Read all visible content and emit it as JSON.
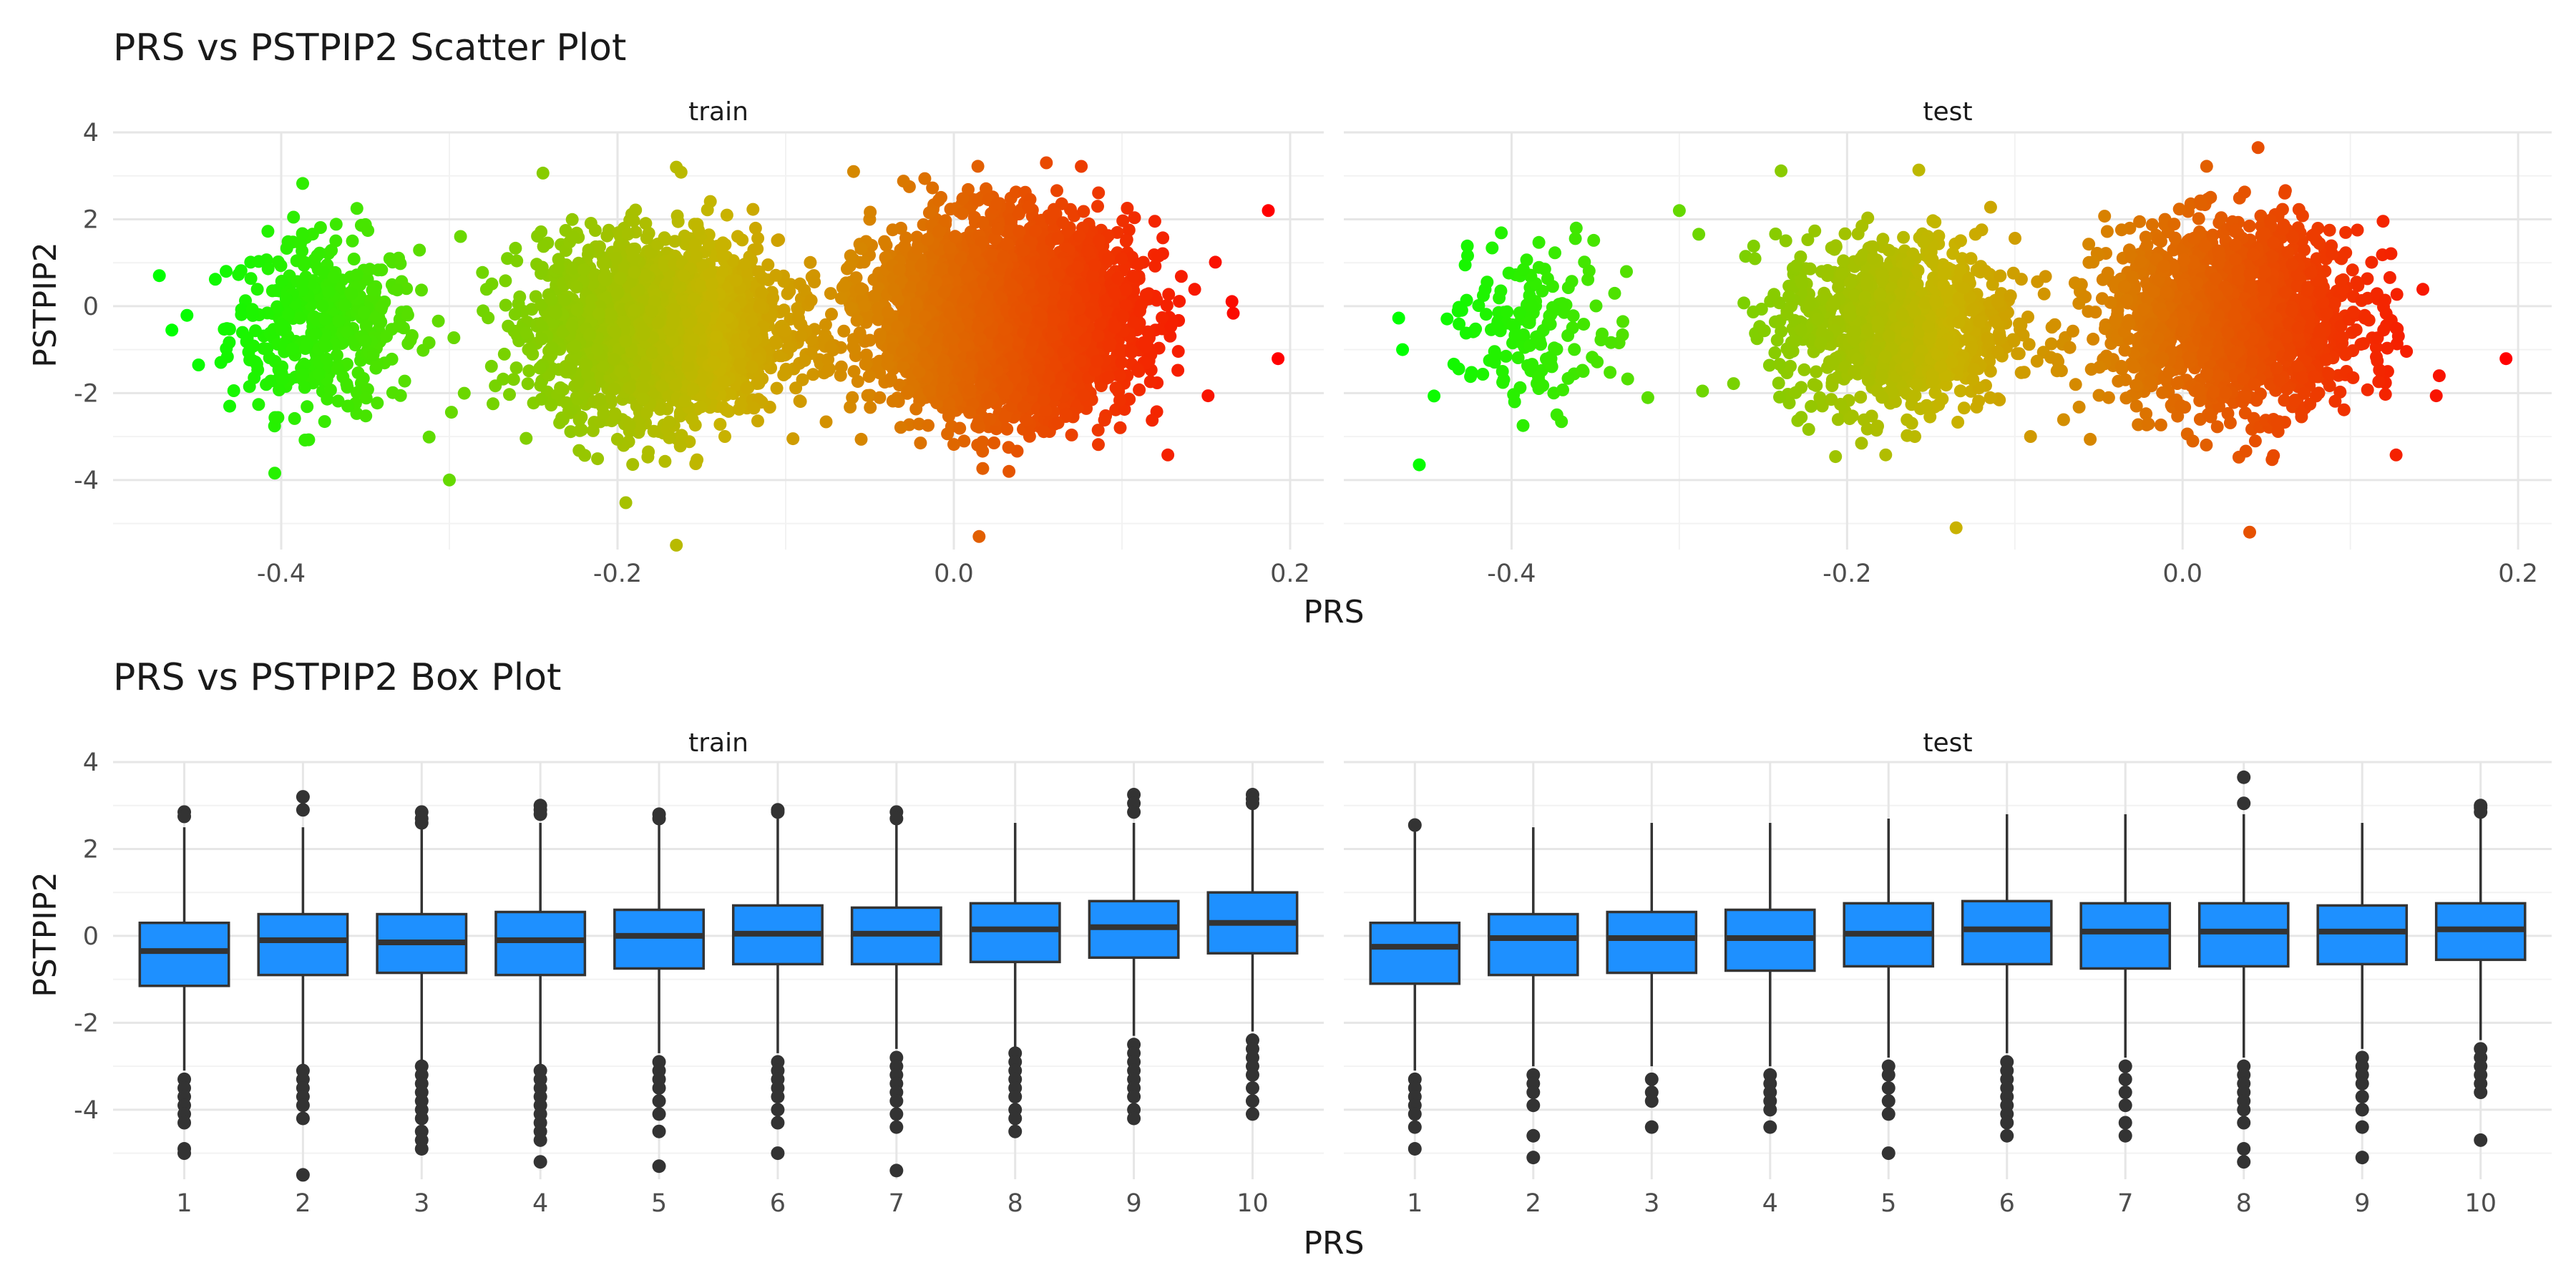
{
  "figure": {
    "scatter_title": "PRS vs PSTPIP2 Scatter Plot",
    "box_title": "PRS vs PSTPIP2 Box Plot",
    "xlabel": "PRS",
    "ylabel": "PSTPIP2",
    "facets": [
      "train",
      "test"
    ]
  },
  "colors": {
    "gradient_low": "#00ff00",
    "gradient_mid": "#c8b400",
    "gradient_high": "#ff0000",
    "box_fill": "#1e90ff",
    "box_line": "#333333",
    "grid_major": "#e6e6e6",
    "grid_minor": "#f2f2f2"
  },
  "chart_data": [
    {
      "type": "scatter",
      "title": "PRS vs PSTPIP2 Scatter Plot",
      "xlabel": "PRS",
      "ylabel": "PSTPIP2",
      "xlim": [
        -0.5,
        0.22
      ],
      "ylim": [
        -5.6,
        4.0
      ],
      "x_ticks": [
        -0.4,
        -0.2,
        0.0,
        0.2
      ],
      "x_tick_labels": [
        "-0.4",
        "-0.2",
        "0.0",
        "0.2"
      ],
      "y_ticks": [
        -4,
        -2,
        0,
        2,
        4
      ],
      "y_tick_labels": [
        "-4",
        "-2",
        "0",
        "2",
        "4"
      ],
      "color_by": "PRS",
      "grid": true,
      "facets": [
        {
          "name": "train",
          "clusters": [
            {
              "x_mean": -0.375,
              "x_sd": 0.028,
              "y_mean": -0.45,
              "y_sd": 1.0,
              "n": 420
            },
            {
              "x_mean": -0.175,
              "x_sd": 0.035,
              "y_mean": -0.5,
              "y_sd": 1.0,
              "n": 2400
            },
            {
              "x_mean": 0.03,
              "x_sd": 0.038,
              "y_mean": -0.25,
              "y_sd": 1.05,
              "n": 3600
            }
          ],
          "extreme_points": [
            {
              "x": -0.465,
              "y": -0.55
            },
            {
              "x": 0.187,
              "y": 2.2
            },
            {
              "x": -0.165,
              "y": -5.5
            },
            {
              "x": 0.015,
              "y": -5.3
            },
            {
              "x": -0.3,
              "y": -4.0
            },
            {
              "x": -0.165,
              "y": 3.2
            },
            {
              "x": 0.055,
              "y": 3.3
            },
            {
              "x": -0.355,
              "y": 2.25
            }
          ]
        },
        {
          "name": "test",
          "clusters": [
            {
              "x_mean": -0.385,
              "x_sd": 0.028,
              "y_mean": -0.45,
              "y_sd": 0.95,
              "n": 160
            },
            {
              "x_mean": -0.17,
              "x_sd": 0.035,
              "y_mean": -0.45,
              "y_sd": 1.0,
              "n": 1000
            },
            {
              "x_mean": 0.03,
              "x_sd": 0.038,
              "y_mean": -0.25,
              "y_sd": 1.05,
              "n": 1600
            }
          ],
          "extreme_points": [
            {
              "x": -0.465,
              "y": -1.0
            },
            {
              "x": -0.455,
              "y": -3.65
            },
            {
              "x": 0.045,
              "y": 3.65
            },
            {
              "x": 0.04,
              "y": -5.2
            },
            {
              "x": -0.135,
              "y": -5.1
            },
            {
              "x": 0.153,
              "y": -1.6
            },
            {
              "x": -0.3,
              "y": 2.2
            }
          ]
        }
      ]
    },
    {
      "type": "box",
      "title": "PRS vs PSTPIP2 Box Plot",
      "xlabel": "PRS",
      "ylabel": "PSTPIP2",
      "categories": [
        "1",
        "2",
        "3",
        "4",
        "5",
        "6",
        "7",
        "8",
        "9",
        "10"
      ],
      "ylim": [
        -5.6,
        4.0
      ],
      "y_ticks": [
        -4,
        -2,
        0,
        2,
        4
      ],
      "y_tick_labels": [
        "-4",
        "-2",
        "0",
        "2",
        "4"
      ],
      "grid": true,
      "facets": [
        {
          "name": "train",
          "boxes": [
            {
              "q1": -1.15,
              "median": -0.35,
              "q3": 0.3,
              "whisker_low": -3.1,
              "whisker_high": 2.5,
              "outliers": [
                2.85,
                2.75,
                -3.3,
                -3.5,
                -3.7,
                -3.9,
                -4.1,
                -4.3,
                -4.9,
                -5.0
              ]
            },
            {
              "q1": -0.9,
              "median": -0.1,
              "q3": 0.5,
              "whisker_low": -3.0,
              "whisker_high": 2.5,
              "outliers": [
                3.2,
                2.9,
                -3.1,
                -3.3,
                -3.5,
                -3.7,
                -3.9,
                -4.2,
                -5.5
              ]
            },
            {
              "q1": -0.85,
              "median": -0.15,
              "q3": 0.5,
              "whisker_low": -2.9,
              "whisker_high": 2.5,
              "outliers": [
                2.85,
                2.7,
                2.6,
                -3.0,
                -3.2,
                -3.4,
                -3.6,
                -3.8,
                -4.0,
                -4.2,
                -4.5,
                -4.7,
                -4.9
              ]
            },
            {
              "q1": -0.9,
              "median": -0.1,
              "q3": 0.55,
              "whisker_low": -3.0,
              "whisker_high": 2.6,
              "outliers": [
                3.0,
                2.9,
                2.8,
                -3.1,
                -3.3,
                -3.5,
                -3.7,
                -3.9,
                -4.1,
                -4.3,
                -4.5,
                -4.7,
                -5.2
              ]
            },
            {
              "q1": -0.75,
              "median": 0.0,
              "q3": 0.6,
              "whisker_low": -2.7,
              "whisker_high": 2.6,
              "outliers": [
                2.8,
                2.7,
                -2.9,
                -3.1,
                -3.3,
                -3.5,
                -3.8,
                -4.1,
                -4.5,
                -5.3
              ]
            },
            {
              "q1": -0.65,
              "median": 0.05,
              "q3": 0.7,
              "whisker_low": -2.7,
              "whisker_high": 2.8,
              "outliers": [
                2.9,
                2.85,
                -2.9,
                -3.1,
                -3.3,
                -3.5,
                -3.7,
                -4.0,
                -4.3,
                -5.0
              ]
            },
            {
              "q1": -0.65,
              "median": 0.05,
              "q3": 0.65,
              "whisker_low": -2.6,
              "whisker_high": 2.6,
              "outliers": [
                2.85,
                2.7,
                -2.8,
                -3.0,
                -3.2,
                -3.4,
                -3.6,
                -3.8,
                -4.1,
                -4.4,
                -5.4
              ]
            },
            {
              "q1": -0.6,
              "median": 0.15,
              "q3": 0.75,
              "whisker_low": -2.6,
              "whisker_high": 2.6,
              "outliers": [
                -2.7,
                -2.9,
                -3.1,
                -3.3,
                -3.5,
                -3.7,
                -4.0,
                -4.2,
                -4.5
              ]
            },
            {
              "q1": -0.5,
              "median": 0.2,
              "q3": 0.8,
              "whisker_low": -2.3,
              "whisker_high": 2.6,
              "outliers": [
                3.25,
                3.05,
                2.85,
                -2.5,
                -2.7,
                -2.9,
                -3.1,
                -3.3,
                -3.5,
                -3.7,
                -4.0,
                -4.2
              ]
            },
            {
              "q1": -0.4,
              "median": 0.3,
              "q3": 1.0,
              "whisker_low": -2.2,
              "whisker_high": 2.9,
              "outliers": [
                3.25,
                3.15,
                3.05,
                -2.4,
                -2.6,
                -2.8,
                -3.0,
                -3.2,
                -3.5,
                -3.8,
                -4.1
              ]
            }
          ]
        },
        {
          "name": "test",
          "boxes": [
            {
              "q1": -1.1,
              "median": -0.25,
              "q3": 0.3,
              "whisker_low": -3.1,
              "whisker_high": 2.4,
              "outliers": [
                2.55,
                -3.3,
                -3.5,
                -3.7,
                -3.9,
                -4.1,
                -4.4,
                -4.9
              ]
            },
            {
              "q1": -0.9,
              "median": -0.05,
              "q3": 0.5,
              "whisker_low": -3.0,
              "whisker_high": 2.5,
              "outliers": [
                -3.2,
                -3.4,
                -3.6,
                -3.9,
                -4.6,
                -5.1
              ]
            },
            {
              "q1": -0.85,
              "median": -0.05,
              "q3": 0.55,
              "whisker_low": -3.0,
              "whisker_high": 2.6,
              "outliers": [
                -3.3,
                -3.6,
                -3.8,
                -4.4
              ]
            },
            {
              "q1": -0.8,
              "median": -0.05,
              "q3": 0.6,
              "whisker_low": -3.0,
              "whisker_high": 2.6,
              "outliers": [
                -3.2,
                -3.4,
                -3.6,
                -3.8,
                -4.0,
                -4.4
              ]
            },
            {
              "q1": -0.7,
              "median": 0.05,
              "q3": 0.75,
              "whisker_low": -2.8,
              "whisker_high": 2.7,
              "outliers": [
                -3.0,
                -3.2,
                -3.5,
                -3.8,
                -4.1,
                -5.0
              ]
            },
            {
              "q1": -0.65,
              "median": 0.15,
              "q3": 0.8,
              "whisker_low": -2.7,
              "whisker_high": 2.8,
              "outliers": [
                -2.9,
                -3.1,
                -3.3,
                -3.5,
                -3.7,
                -3.9,
                -4.1,
                -4.3,
                -4.6
              ]
            },
            {
              "q1": -0.75,
              "median": 0.1,
              "q3": 0.75,
              "whisker_low": -2.8,
              "whisker_high": 2.8,
              "outliers": [
                -3.0,
                -3.3,
                -3.6,
                -3.9,
                -4.3,
                -4.6
              ]
            },
            {
              "q1": -0.7,
              "median": 0.1,
              "q3": 0.75,
              "whisker_low": -2.8,
              "whisker_high": 2.8,
              "outliers": [
                3.65,
                3.05,
                -3.0,
                -3.2,
                -3.4,
                -3.6,
                -3.8,
                -4.0,
                -4.3,
                -4.9,
                -5.2
              ]
            },
            {
              "q1": -0.65,
              "median": 0.1,
              "q3": 0.7,
              "whisker_low": -2.6,
              "whisker_high": 2.6,
              "outliers": [
                -2.8,
                -3.0,
                -3.2,
                -3.4,
                -3.7,
                -4.0,
                -4.4,
                -5.1
              ]
            },
            {
              "q1": -0.55,
              "median": 0.15,
              "q3": 0.75,
              "whisker_low": -2.4,
              "whisker_high": 2.7,
              "outliers": [
                3.0,
                2.95,
                2.85,
                -2.6,
                -2.8,
                -3.0,
                -3.2,
                -3.4,
                -3.6,
                -4.7
              ]
            }
          ]
        }
      ]
    }
  ]
}
